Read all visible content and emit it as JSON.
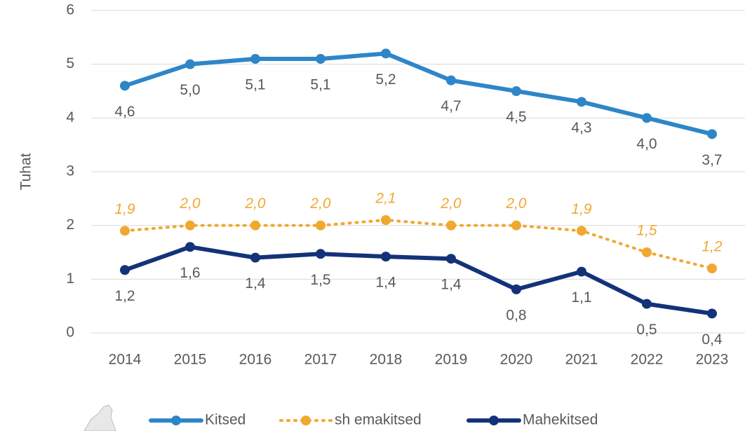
{
  "chart_data": {
    "type": "line",
    "y_label": "Tuhat",
    "categories": [
      "2014",
      "2015",
      "2016",
      "2017",
      "2018",
      "2019",
      "2020",
      "2021",
      "2022",
      "2023"
    ],
    "ylim": [
      0,
      6
    ],
    "yticks": [
      0,
      1,
      2,
      3,
      4,
      5,
      6
    ],
    "grid": true,
    "series": [
      {
        "name": "Kitsed",
        "color": "#2e86c8",
        "line_style": "solid",
        "label_position": "below",
        "values": [
          4.6,
          5.0,
          5.1,
          5.1,
          5.2,
          4.7,
          4.5,
          4.3,
          4.0,
          3.7
        ],
        "value_labels": [
          "4,6",
          "5,0",
          "5,1",
          "5,1",
          "5,2",
          "4,7",
          "4,5",
          "4,3",
          "4,0",
          "3,7"
        ]
      },
      {
        "name": "sh emakitsed",
        "color": "#f0a830",
        "line_style": "dotted",
        "label_position": "above",
        "values": [
          1.9,
          2.0,
          2.0,
          2.0,
          2.1,
          2.0,
          2.0,
          1.9,
          1.5,
          1.2
        ],
        "value_labels": [
          "1,9",
          "2,0",
          "2,0",
          "2,0",
          "2,1",
          "2,0",
          "2,0",
          "1,9",
          "1,5",
          "1,2"
        ]
      },
      {
        "name": "Mahekitsed",
        "color": "#13327a",
        "line_style": "solid",
        "label_position": "below",
        "values": [
          1.17,
          1.6,
          1.4,
          1.47,
          1.42,
          1.38,
          0.81,
          1.14,
          0.54,
          0.36
        ],
        "value_labels": [
          "1,2",
          "1,6",
          "1,4",
          "1,5",
          "1,4",
          "1,4",
          "0,8",
          "1,1",
          "0,5",
          "0,4"
        ]
      }
    ]
  }
}
